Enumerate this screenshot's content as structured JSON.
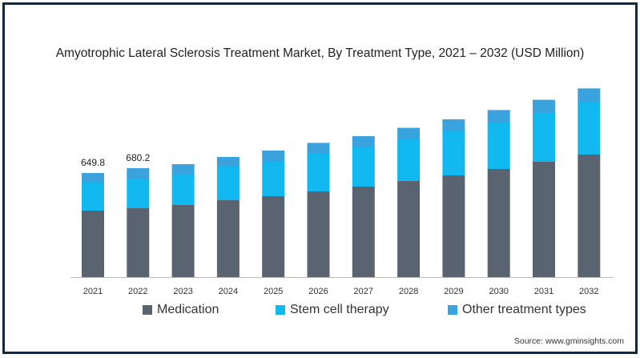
{
  "chart_data": {
    "type": "bar",
    "stacked": true,
    "title": "Amyotrophic Lateral Sclerosis Treatment Market, By Treatment Type, 2021 – 2032 (USD Million)",
    "categories": [
      "2021",
      "2022",
      "2023",
      "2024",
      "2025",
      "2026",
      "2027",
      "2028",
      "2029",
      "2030",
      "2031",
      "2032"
    ],
    "series": [
      {
        "name": "Medication",
        "color": "#5a6470",
        "values": [
          415,
          430,
          450,
          480,
          505,
          535,
          565,
          600,
          635,
          675,
          720,
          765
        ]
      },
      {
        "name": "Stem cell therapy",
        "color": "#12b8f0",
        "values": [
          175,
          185,
          195,
          210,
          220,
          235,
          245,
          260,
          275,
          290,
          305,
          325
        ]
      },
      {
        "name": "Other treatment types",
        "color": "#3aa2dc",
        "values": [
          59.8,
          65.2,
          60,
          60,
          65,
          68,
          70,
          72,
          75,
          78,
          82,
          88
        ]
      }
    ],
    "data_labels": [
      {
        "category": "2021",
        "text": "649.8"
      },
      {
        "category": "2022",
        "text": "680.2"
      }
    ],
    "ylim": [
      0,
      1300
    ],
    "grid": false,
    "legend_position": "bottom",
    "xlabel": "",
    "ylabel": ""
  },
  "source_text": "Source: www.gminsights.com"
}
